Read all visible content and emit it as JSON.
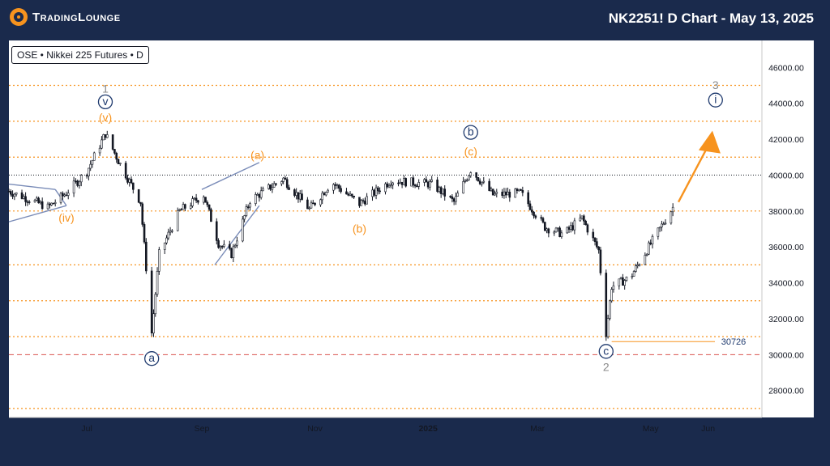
{
  "header": {
    "logo_text": "TradingLounge",
    "title": "NK2251! D Chart - May 13, 2025"
  },
  "colors": {
    "background": "#1a2a4c",
    "chart_bg": "#ffffff",
    "orange": "#f7931e",
    "navy": "#1f3a6e",
    "grey": "#8a8a8a",
    "candle": "#131722",
    "channel": "#7a8cb8",
    "support": "#d9534f"
  },
  "chart_data": {
    "type": "candlestick",
    "instrument_label": "OSE • Nikkei 225 Futures • D",
    "x_ticks": [
      "Jul",
      "Sep",
      "Nov",
      "2025",
      "Mar",
      "May",
      "Jun"
    ],
    "y_ticks": [
      "46000.00",
      "44000.00",
      "42000.00",
      "40000.00",
      "38000.00",
      "36000.00",
      "34000.00",
      "32000.00",
      "30000.00",
      "28000.00"
    ],
    "y_range": [
      26500,
      47500
    ],
    "levels": [
      45000,
      43000,
      41000,
      38000,
      35000,
      33000,
      31000,
      27000
    ],
    "key_level": 40000,
    "support_level": 30000,
    "low_marker": {
      "label": "30726",
      "value": 30726
    },
    "path_points": [
      {
        "x": "2024-05-20",
        "y": 39100
      },
      {
        "x": "2024-05-30",
        "y": 38700
      },
      {
        "x": "2024-06-10",
        "y": 38200
      },
      {
        "x": "2024-06-20",
        "y": 39000
      },
      {
        "x": "2024-07-01",
        "y": 40200
      },
      {
        "x": "2024-07-11",
        "y": 42300
      },
      {
        "x": "2024-07-18",
        "y": 40800
      },
      {
        "x": "2024-07-30",
        "y": 38500
      },
      {
        "x": "2024-08-05",
        "y": 31200
      },
      {
        "x": "2024-08-09",
        "y": 35600
      },
      {
        "x": "2024-08-20",
        "y": 38000
      },
      {
        "x": "2024-09-02",
        "y": 38900
      },
      {
        "x": "2024-09-10",
        "y": 36200
      },
      {
        "x": "2024-09-17",
        "y": 35600
      },
      {
        "x": "2024-09-27",
        "y": 38600
      },
      {
        "x": "2024-10-15",
        "y": 39800
      },
      {
        "x": "2024-10-29",
        "y": 38100
      },
      {
        "x": "2024-11-10",
        "y": 39600
      },
      {
        "x": "2024-11-25",
        "y": 38400
      },
      {
        "x": "2024-12-12",
        "y": 39700
      },
      {
        "x": "2025-01-03",
        "y": 39500
      },
      {
        "x": "2025-01-15",
        "y": 38500
      },
      {
        "x": "2025-01-24",
        "y": 40300
      },
      {
        "x": "2025-02-05",
        "y": 38900
      },
      {
        "x": "2025-02-20",
        "y": 39000
      },
      {
        "x": "2025-03-05",
        "y": 37100
      },
      {
        "x": "2025-03-15",
        "y": 36700
      },
      {
        "x": "2025-03-25",
        "y": 37600
      },
      {
        "x": "2025-04-03",
        "y": 35800
      },
      {
        "x": "2025-04-07",
        "y": 31200
      },
      {
        "x": "2025-04-10",
        "y": 33800
      },
      {
        "x": "2025-04-20",
        "y": 34300
      },
      {
        "x": "2025-04-30",
        "y": 36000
      },
      {
        "x": "2025-05-13",
        "y": 38200
      }
    ],
    "wave_labels": [
      {
        "text": "1",
        "x": "2024-07-11",
        "y": 44600,
        "style": "grey"
      },
      {
        "text": "v",
        "x": "2024-07-11",
        "y": 43900,
        "style": "navy-circle"
      },
      {
        "text": "(v)",
        "x": "2024-07-11",
        "y": 43000,
        "style": "orange"
      },
      {
        "text": "(iv)",
        "x": "2024-06-20",
        "y": 37400,
        "style": "orange"
      },
      {
        "text": "a",
        "x": "2024-08-05",
        "y": 29600,
        "style": "navy-circle"
      },
      {
        "text": "(a)",
        "x": "2024-10-01",
        "y": 40900,
        "style": "orange"
      },
      {
        "text": "(b)",
        "x": "2024-11-25",
        "y": 36800,
        "style": "orange"
      },
      {
        "text": "b",
        "x": "2025-01-24",
        "y": 42200,
        "style": "navy-circle"
      },
      {
        "text": "(c)",
        "x": "2025-01-24",
        "y": 41100,
        "style": "orange"
      },
      {
        "text": "c",
        "x": "2025-04-07",
        "y": 30000,
        "style": "navy-circle"
      },
      {
        "text": "2",
        "x": "2025-04-07",
        "y": 29100,
        "style": "grey"
      },
      {
        "text": "3",
        "x": "2025-06-05",
        "y": 44800,
        "style": "grey"
      },
      {
        "text": "i",
        "x": "2025-06-05",
        "y": 44000,
        "style": "navy-circle"
      }
    ],
    "projection": {
      "from": {
        "x": "2025-05-16",
        "y": 38500
      },
      "to": {
        "x": "2025-06-02",
        "y": 42200
      }
    }
  }
}
